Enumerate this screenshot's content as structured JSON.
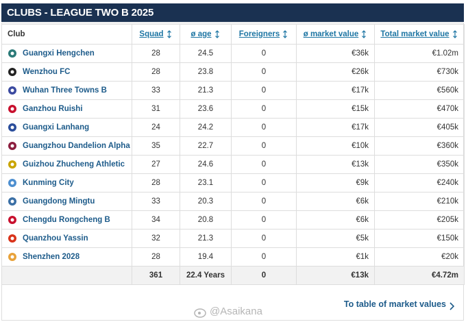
{
  "header": {
    "title": "CLUBS - LEAGUE TWO B 2025"
  },
  "table": {
    "columns": {
      "club": "Club",
      "squad": "Squad",
      "age": "ø age",
      "foreigners": "Foreigners",
      "avg_value": "ø market value",
      "total_value": "Total market value"
    },
    "rows": [
      {
        "club": "Guangxi Hengchen",
        "squad": 28,
        "age": 24.5,
        "foreigners": 0,
        "avg_value": "€36k",
        "total_value": "€1.02m"
      },
      {
        "club": "Wenzhou FC",
        "squad": 28,
        "age": 23.8,
        "foreigners": 0,
        "avg_value": "€26k",
        "total_value": "€730k"
      },
      {
        "club": "Wuhan Three Towns B",
        "squad": 33,
        "age": 21.3,
        "foreigners": 0,
        "avg_value": "€17k",
        "total_value": "€560k"
      },
      {
        "club": "Ganzhou Ruishi",
        "squad": 31,
        "age": 23.6,
        "foreigners": 0,
        "avg_value": "€15k",
        "total_value": "€470k"
      },
      {
        "club": "Guangxi Lanhang",
        "squad": 24,
        "age": 24.2,
        "foreigners": 0,
        "avg_value": "€17k",
        "total_value": "€405k"
      },
      {
        "club": "Guangzhou Dandelion Alpha",
        "squad": 35,
        "age": 22.7,
        "foreigners": 0,
        "avg_value": "€10k",
        "total_value": "€360k"
      },
      {
        "club": "Guizhou Zhucheng Athletic",
        "squad": 27,
        "age": 24.6,
        "foreigners": 0,
        "avg_value": "€13k",
        "total_value": "€350k"
      },
      {
        "club": "Kunming City",
        "squad": 28,
        "age": 23.1,
        "foreigners": 0,
        "avg_value": "€9k",
        "total_value": "€240k"
      },
      {
        "club": "Guangdong Mingtu",
        "squad": 33,
        "age": 20.3,
        "foreigners": 0,
        "avg_value": "€6k",
        "total_value": "€210k"
      },
      {
        "club": "Chengdu Rongcheng B",
        "squad": 34,
        "age": 20.8,
        "foreigners": 0,
        "avg_value": "€6k",
        "total_value": "€205k"
      },
      {
        "club": "Quanzhou Yassin",
        "squad": 32,
        "age": 21.3,
        "foreigners": 0,
        "avg_value": "€5k",
        "total_value": "€150k"
      },
      {
        "club": "Shenzhen 2028",
        "squad": 28,
        "age": 19.4,
        "foreigners": 0,
        "avg_value": "€1k",
        "total_value": "€20k"
      }
    ],
    "footer": {
      "squad": 361,
      "age": "22.4 Years",
      "foreigners": 0,
      "avg_value": "€13k",
      "total_value": "€4.72m"
    }
  },
  "link": "To table of market values",
  "watermark": "@Asaikana"
}
